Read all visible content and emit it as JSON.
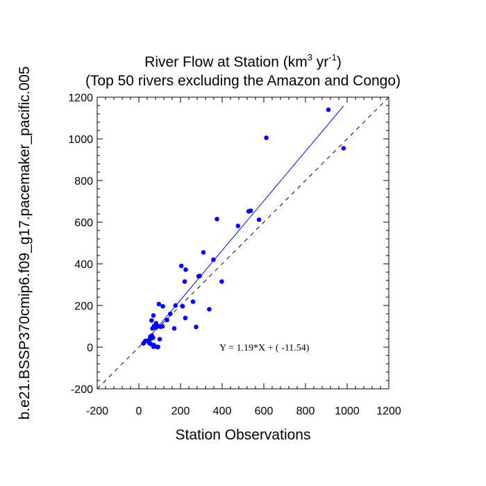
{
  "chart_data": {
    "type": "scatter",
    "title_parts": [
      "River Flow at Station (km",
      "3",
      " yr",
      "-1",
      ")"
    ],
    "subtitle": "(Top 50 rivers excluding the Amazon and Congo)",
    "xlabel": "Station Observations",
    "ylabel": "b.e21.BSSP370cmip6.f09_g17.pacemaker_pacific.005",
    "xlim": [
      -200,
      1200
    ],
    "ylim": [
      -200,
      1200
    ],
    "xticks": [
      "-200",
      "0",
      "200",
      "400",
      "600",
      "800",
      "1000",
      "1200"
    ],
    "yticks": [
      "-200",
      "0",
      "200",
      "400",
      "600",
      "800",
      "1000",
      "1200"
    ],
    "grid": false,
    "point_color": "#0000ff",
    "points": [
      [
        910,
        1140
      ],
      [
        612,
        1005
      ],
      [
        983,
        955
      ],
      [
        375,
        615
      ],
      [
        527,
        652
      ],
      [
        537,
        655
      ],
      [
        577,
        612
      ],
      [
        476,
        582
      ],
      [
        310,
        455
      ],
      [
        358,
        420
      ],
      [
        204,
        390
      ],
      [
        225,
        372
      ],
      [
        287,
        340
      ],
      [
        292,
        342
      ],
      [
        220,
        315
      ],
      [
        398,
        315
      ],
      [
        260,
        218
      ],
      [
        338,
        182
      ],
      [
        223,
        140
      ],
      [
        210,
        196
      ],
      [
        176,
        200
      ],
      [
        96,
        207
      ],
      [
        115,
        196
      ],
      [
        151,
        160
      ],
      [
        70,
        152
      ],
      [
        135,
        130
      ],
      [
        61,
        128
      ],
      [
        83,
        115
      ],
      [
        95,
        100
      ],
      [
        113,
        100
      ],
      [
        105,
        98
      ],
      [
        73,
        102
      ],
      [
        77,
        95
      ],
      [
        65,
        90
      ],
      [
        275,
        97
      ],
      [
        170,
        90
      ],
      [
        62,
        55
      ],
      [
        55,
        50
      ],
      [
        68,
        45
      ],
      [
        54,
        38
      ],
      [
        100,
        38
      ],
      [
        31,
        30
      ],
      [
        42,
        28
      ],
      [
        22,
        18
      ],
      [
        50,
        20
      ],
      [
        57,
        15
      ],
      [
        72,
        10
      ],
      [
        70,
        2
      ],
      [
        92,
        1
      ],
      [
        87,
        1
      ]
    ],
    "regression": {
      "slope": 1.19,
      "intercept": -11.54,
      "x_range": [
        23,
        983
      ],
      "color": "#0000ff",
      "equation_text": "Y =  1.19*X + (  -11.54)",
      "equation_pos": [
        440,
        0
      ]
    },
    "reference_line": {
      "label": "1:1",
      "style": "dashed",
      "color": "#000000"
    }
  }
}
